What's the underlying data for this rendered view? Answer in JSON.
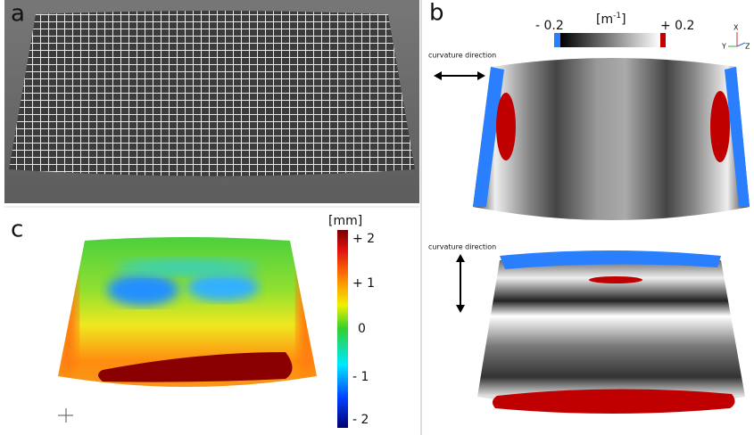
{
  "panels": {
    "a": {
      "label": "a"
    },
    "b": {
      "label": "b",
      "colorbar": {
        "min_label": "- 0.2",
        "unit": "[m",
        "unit_exp": "-1",
        "unit_close": "]",
        "max_label": "+ 0.2"
      },
      "axes": [
        "X",
        "Y",
        "Z"
      ],
      "annotations": [
        "curvature direction",
        "curvature direction"
      ]
    },
    "c": {
      "label": "c",
      "colorbar": {
        "unit": "[mm]",
        "ticks": [
          "+ 2",
          "+ 1",
          "0",
          "- 1",
          "- 2"
        ]
      }
    }
  }
}
